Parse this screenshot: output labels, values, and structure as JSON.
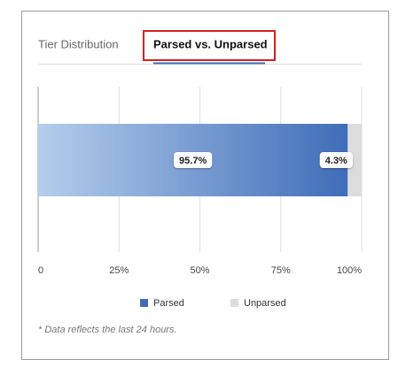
{
  "tabs": [
    "Tier Distribution",
    "Parsed vs. Unparsed"
  ],
  "footnote": "* Data reflects the last 24 hours.",
  "chart_data": {
    "type": "stacked-bar-horizontal",
    "categories": [
      null
    ],
    "series": [
      {
        "name": "Parsed",
        "color": "#3f6db8",
        "values": [
          95.7
        ],
        "value_labels": [
          "95.7%"
        ]
      },
      {
        "name": "Unparsed",
        "color": "#dcdcdc",
        "values": [
          4.3
        ],
        "value_labels": [
          "4.3%"
        ]
      }
    ],
    "xlim": [
      0,
      100
    ],
    "xticks": [
      0,
      {
        "value": 25,
        "label": "25%"
      },
      {
        "value": 50,
        "label": "50%"
      },
      {
        "value": 75,
        "label": "75%"
      },
      {
        "value": 100,
        "label": "100%"
      }
    ],
    "grid": true,
    "legend": "bottom"
  }
}
